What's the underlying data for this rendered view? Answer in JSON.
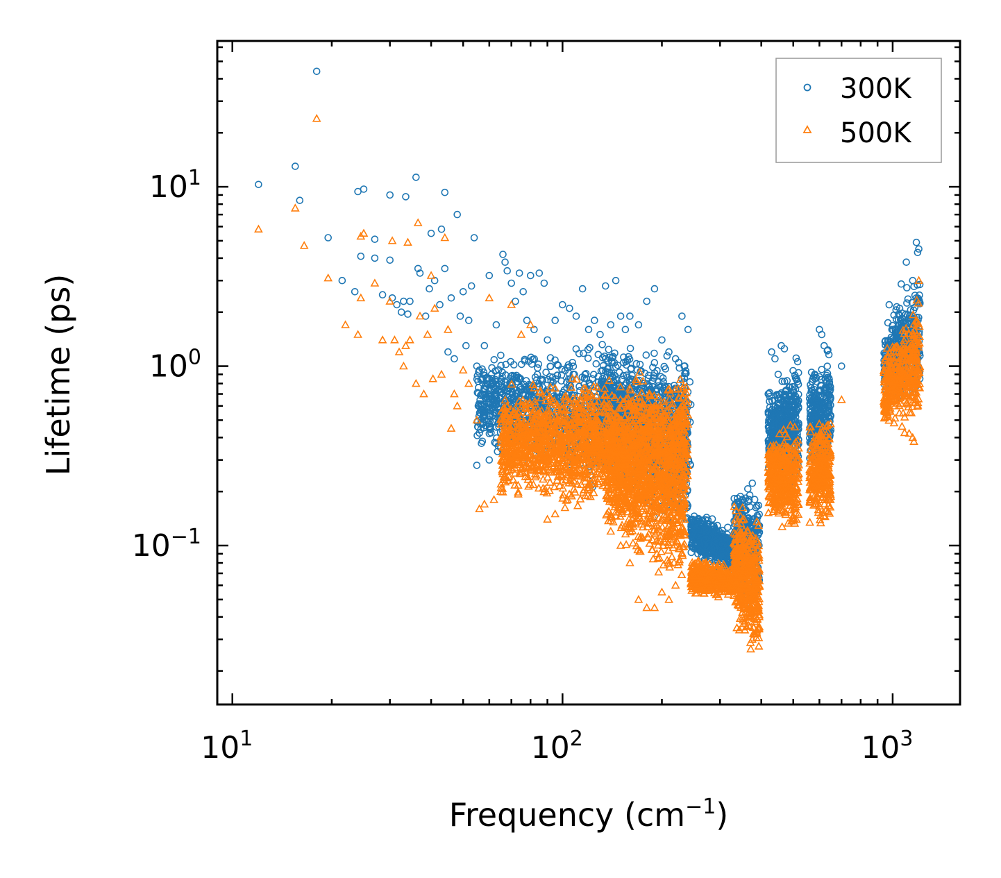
{
  "chart_data": {
    "type": "scatter",
    "title": "",
    "xlabel": "Frequency (cm",
    "xlabel_sup": "−1",
    "xlabel_end": ")",
    "ylabel": "Lifetime (ps)",
    "xscale": "log",
    "yscale": "log",
    "xlim": [
      9,
      1600
    ],
    "ylim": [
      0.013,
      65
    ],
    "x_ticks": [
      {
        "value": 10,
        "base": "10",
        "exp": "1"
      },
      {
        "value": 100,
        "base": "10",
        "exp": "2"
      },
      {
        "value": 1000,
        "base": "10",
        "exp": "3"
      }
    ],
    "y_ticks": [
      {
        "value": 10,
        "base": "10",
        "exp": "1"
      },
      {
        "value": 1,
        "base": "10",
        "exp": "0"
      },
      {
        "value": 0.1,
        "base": "10",
        "exp": "−1"
      }
    ],
    "legend_position": "top-right",
    "series": [
      {
        "name": "300K",
        "marker": "circle",
        "color": "#1f77b4",
        "points": [
          [
            12,
            10.3
          ],
          [
            15.5,
            13
          ],
          [
            16,
            8.4
          ],
          [
            18,
            44
          ],
          [
            19.5,
            5.2
          ],
          [
            21.5,
            3
          ],
          [
            23.5,
            2.6
          ],
          [
            24,
            9.4
          ],
          [
            24.5,
            4.1
          ],
          [
            25,
            9.7
          ],
          [
            27,
            5.1
          ],
          [
            27,
            4
          ],
          [
            28.5,
            2.5
          ],
          [
            30,
            9
          ],
          [
            30,
            3.9
          ],
          [
            30.5,
            2.4
          ],
          [
            31.5,
            2.2
          ],
          [
            32.5,
            2
          ],
          [
            33,
            2.3
          ],
          [
            33.5,
            8.8
          ],
          [
            34,
            1.95
          ],
          [
            34.5,
            2.3
          ],
          [
            36,
            11.3
          ],
          [
            36.5,
            3.5
          ],
          [
            37,
            3.3
          ],
          [
            38.5,
            1.9
          ],
          [
            39.5,
            2.7
          ],
          [
            40,
            5.5
          ],
          [
            41,
            3
          ],
          [
            42.5,
            2.2
          ],
          [
            43,
            5.8
          ],
          [
            44,
            9.3
          ],
          [
            44,
            3.5
          ],
          [
            45,
            1.2
          ],
          [
            46,
            2.4
          ],
          [
            47,
            1.1
          ],
          [
            48,
            7
          ],
          [
            49,
            1.9
          ],
          [
            50,
            2.6
          ],
          [
            51,
            1.3
          ],
          [
            52,
            1.8
          ],
          [
            53,
            2.8
          ],
          [
            54,
            5.2
          ],
          [
            55,
            1
          ],
          [
            56,
            0.95
          ],
          [
            57,
            0.7
          ],
          [
            58,
            1.3
          ],
          [
            60,
            3.2
          ],
          [
            61,
            0.9
          ],
          [
            62,
            0.75
          ],
          [
            63,
            1.7
          ],
          [
            65,
            1.15
          ],
          [
            66,
            4.2
          ],
          [
            67,
            3.8
          ],
          [
            68,
            3.4
          ],
          [
            70,
            2.9
          ],
          [
            72,
            2.3
          ],
          [
            74,
            3.3
          ],
          [
            76,
            2.6
          ],
          [
            78,
            1.8
          ],
          [
            80,
            3.2
          ],
          [
            82,
            1.6
          ],
          [
            85,
            3.3
          ],
          [
            88,
            2.9
          ],
          [
            90,
            1.4
          ],
          [
            95,
            1.8
          ],
          [
            100,
            2.2
          ],
          [
            105,
            2.1
          ],
          [
            110,
            1.9
          ],
          [
            115,
            2.7
          ],
          [
            120,
            1.6
          ],
          [
            125,
            1.8
          ],
          [
            130,
            1.5
          ],
          [
            135,
            2.8
          ],
          [
            140,
            1.7
          ],
          [
            145,
            3
          ],
          [
            150,
            1.9
          ],
          [
            155,
            1.6
          ],
          [
            160,
            1.9
          ],
          [
            170,
            1.7
          ],
          [
            180,
            2.3
          ],
          [
            190,
            2.7
          ],
          [
            200,
            1.4
          ],
          [
            210,
            1.2
          ],
          [
            220,
            1.1
          ],
          [
            230,
            1.9
          ],
          [
            240,
            1.6
          ],
          [
            55,
            0.28
          ],
          [
            60,
            0.3
          ],
          [
            65,
            0.35
          ],
          [
            420,
            0.7
          ],
          [
            430,
            1.2
          ],
          [
            440,
            1.1
          ],
          [
            450,
            0.9
          ],
          [
            460,
            1.3
          ],
          [
            470,
            1.25
          ],
          [
            480,
            0.65
          ],
          [
            600,
            1.6
          ],
          [
            610,
            1.5
          ],
          [
            620,
            1.3
          ],
          [
            700,
            1
          ],
          [
            1000,
            1.6
          ],
          [
            1050,
            2.1
          ],
          [
            1100,
            3.8
          ],
          [
            1150,
            3
          ],
          [
            1180,
            4.9
          ],
          [
            1190,
            4.3
          ],
          [
            1200,
            4.5
          ]
        ],
        "clusters": [
          {
            "x": [
              55,
              245
            ],
            "ymin": [
              0.3,
              0.12
            ],
            "ymax": [
              1.3,
              1.6
            ],
            "n": 1400
          },
          {
            "x": [
              130,
              240
            ],
            "ymin": [
              0.25,
              0.08
            ],
            "ymax": [
              1.6,
              1.2
            ],
            "n": 700
          },
          {
            "x": [
              245,
              330
            ],
            "ymin": [
              0.08,
              0.065
            ],
            "ymax": [
              0.17,
              0.13
            ],
            "n": 500
          },
          {
            "x": [
              330,
              395
            ],
            "ymin": [
              0.045,
              0.04
            ],
            "ymax": [
              0.28,
              0.24
            ],
            "n": 300
          },
          {
            "x": [
              420,
              520
            ],
            "ymin": [
              0.25,
              0.2
            ],
            "ymax": [
              0.75,
              1.3
            ],
            "n": 450
          },
          {
            "x": [
              560,
              650
            ],
            "ymin": [
              0.25,
              0.2
            ],
            "ymax": [
              1,
              1.6
            ],
            "n": 300
          },
          {
            "x": [
              940,
              1210
            ],
            "ymin": [
              0.5,
              0.55
            ],
            "ymax": [
              2,
              4.5
            ],
            "n": 400
          }
        ]
      },
      {
        "name": "500K",
        "marker": "triangle",
        "color": "#ff7f0e",
        "points": [
          [
            12,
            5.8
          ],
          [
            15.5,
            7.6
          ],
          [
            16.5,
            4.7
          ],
          [
            18,
            24
          ],
          [
            19.5,
            3.1
          ],
          [
            22,
            1.7
          ],
          [
            24,
            1.5
          ],
          [
            24.5,
            2.4
          ],
          [
            24.5,
            5.3
          ],
          [
            25,
            5.5
          ],
          [
            27,
            2.9
          ],
          [
            28.5,
            1.4
          ],
          [
            30,
            2.3
          ],
          [
            30.5,
            5
          ],
          [
            31,
            1.4
          ],
          [
            32,
            1.2
          ],
          [
            33,
            1
          ],
          [
            33.5,
            1.3
          ],
          [
            34,
            4.9
          ],
          [
            34.5,
            1.4
          ],
          [
            36,
            0.8
          ],
          [
            36.5,
            6.3
          ],
          [
            37,
            1.9
          ],
          [
            38,
            0.7
          ],
          [
            39,
            1.5
          ],
          [
            40,
            3.2
          ],
          [
            40.5,
            0.85
          ],
          [
            41,
            2.1
          ],
          [
            43,
            0.9
          ],
          [
            44,
            5.2
          ],
          [
            45,
            1.6
          ],
          [
            46,
            0.45
          ],
          [
            47,
            0.7
          ],
          [
            48,
            0.6
          ],
          [
            50,
            0.95
          ],
          [
            52,
            0.8
          ],
          [
            55,
            0.5
          ],
          [
            56,
            0.16
          ],
          [
            58,
            0.17
          ],
          [
            60,
            2.4
          ],
          [
            62,
            0.18
          ],
          [
            65,
            0.2
          ],
          [
            68,
            0.6
          ],
          [
            70,
            2.2
          ],
          [
            75,
            1.5
          ],
          [
            80,
            1.7
          ],
          [
            85,
            0.3
          ],
          [
            90,
            0.14
          ],
          [
            95,
            0.15
          ],
          [
            100,
            0.35
          ],
          [
            110,
            0.6
          ],
          [
            120,
            0.35
          ],
          [
            130,
            0.25
          ],
          [
            140,
            0.12
          ],
          [
            150,
            0.1
          ],
          [
            160,
            0.08
          ],
          [
            170,
            0.05
          ],
          [
            180,
            0.045
          ],
          [
            190,
            0.045
          ],
          [
            200,
            0.055
          ],
          [
            210,
            0.05
          ],
          [
            220,
            0.06
          ],
          [
            230,
            0.09
          ],
          [
            700,
            0.65
          ],
          [
            1150,
            0.4
          ],
          [
            1160,
            0.38
          ],
          [
            1200,
            3
          ]
        ],
        "clusters": [
          {
            "x": [
              65,
              240
            ],
            "ymin": [
              0.16,
              0.14
            ],
            "ymax": [
              0.85,
              1.1
            ],
            "n": 1800
          },
          {
            "x": [
              135,
              235
            ],
            "ymin": [
              0.1,
              0.05
            ],
            "ymax": [
              0.7,
              0.5
            ],
            "n": 800
          },
          {
            "x": [
              245,
              335
            ],
            "ymin": [
              0.05,
              0.05
            ],
            "ymax": [
              0.09,
              0.08
            ],
            "n": 450
          },
          {
            "x": [
              330,
              395
            ],
            "ymin": [
              0.03,
              0.02
            ],
            "ymax": [
              0.2,
              0.16
            ],
            "n": 450
          },
          {
            "x": [
              420,
              520
            ],
            "ymin": [
              0.12,
              0.1
            ],
            "ymax": [
              0.45,
              0.55
            ],
            "n": 450
          },
          {
            "x": [
              560,
              650
            ],
            "ymin": [
              0.12,
              0.12
            ],
            "ymax": [
              0.5,
              0.65
            ],
            "n": 300
          },
          {
            "x": [
              940,
              1210
            ],
            "ymin": [
              0.4,
              0.4
            ],
            "ymax": [
              1.3,
              2.8
            ],
            "n": 400
          }
        ]
      }
    ]
  }
}
